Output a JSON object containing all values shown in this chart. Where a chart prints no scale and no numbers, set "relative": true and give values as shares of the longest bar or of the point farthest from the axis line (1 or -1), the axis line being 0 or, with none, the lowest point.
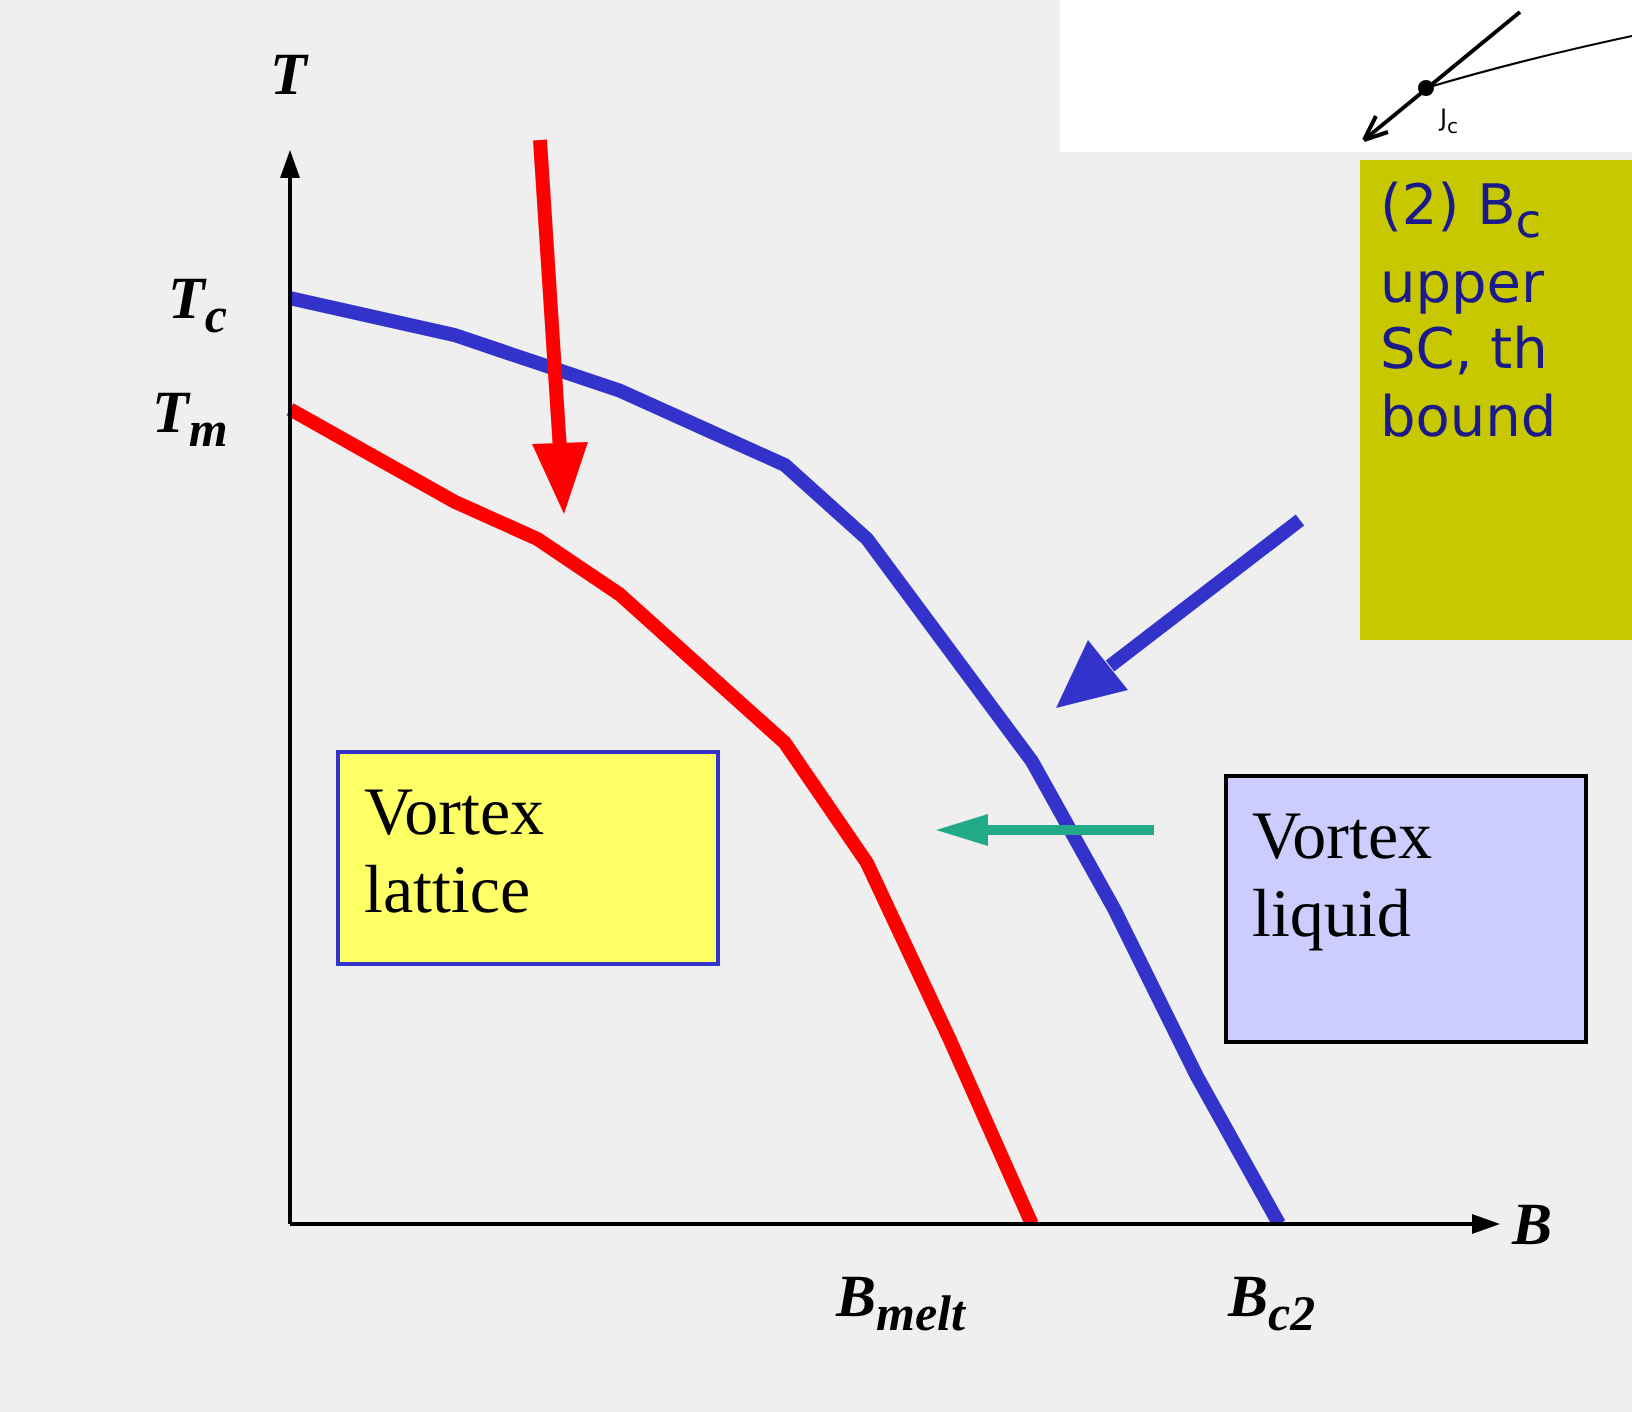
{
  "chart_data": {
    "type": "line",
    "relative": true,
    "xlabel": "B",
    "ylabel": "T",
    "legend": false,
    "categories": [
      null,
      null,
      null,
      null,
      null,
      null,
      null,
      null,
      null,
      null,
      null,
      null,
      null,
      null,
      null
    ],
    "series": [
      {
        "color": "#3333cc",
        "values": [
          1.0,
          0.98,
          0.96,
          0.93,
          0.9,
          0.86,
          0.82,
          0.74,
          0.62,
          0.5,
          0.34,
          0.16,
          0.0,
          null,
          null
        ]
      },
      {
        "color": "#ff0000",
        "values": [
          0.88,
          0.83,
          0.78,
          0.74,
          0.68,
          0.6,
          0.52,
          0.39,
          0.2,
          0.0,
          null,
          null,
          null,
          null,
          null
        ]
      }
    ],
    "annotations": [
      "T$_{c}$",
      "T$_{m}$",
      "B$_{melt}$",
      "B$_{c2}$",
      "Vortex\nlattice",
      "Vortex\nliquid",
      "(2) B$_{c}$\nupper\nSC, th\nbound",
      "J$_{c}$"
    ]
  }
}
